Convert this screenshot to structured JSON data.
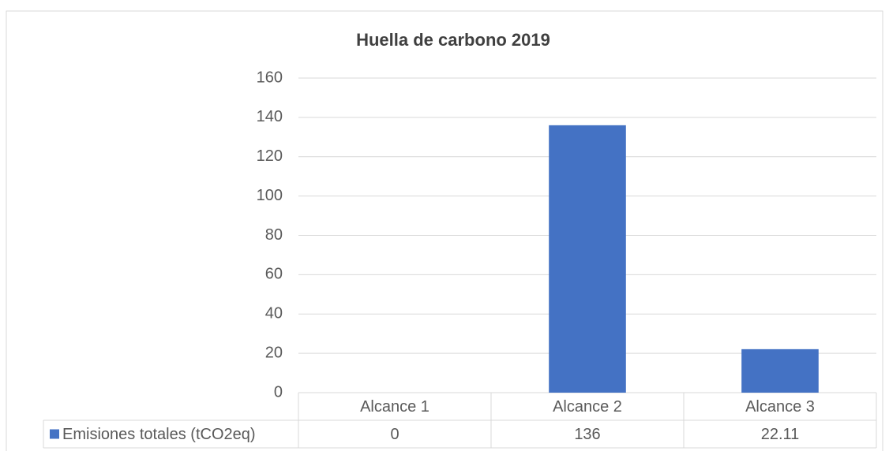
{
  "chart_data": {
    "type": "bar",
    "title": "Huella de carbono 2019",
    "categories": [
      "Alcance 1",
      "Alcance 2",
      "Alcance 3"
    ],
    "series": [
      {
        "name": "Emisiones totales (tCO2eq)",
        "color": "#4472c4",
        "values": [
          0,
          136,
          22.11
        ]
      }
    ],
    "ylim": [
      0,
      160
    ],
    "yticks": [
      0,
      20,
      40,
      60,
      80,
      100,
      120,
      140,
      160
    ],
    "grid": true
  }
}
